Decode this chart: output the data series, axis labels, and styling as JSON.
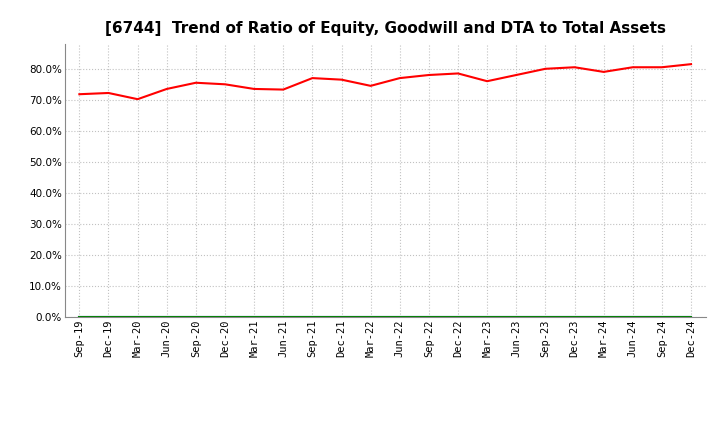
{
  "title": "[6744]  Trend of Ratio of Equity, Goodwill and DTA to Total Assets",
  "x_labels": [
    "Sep-19",
    "Dec-19",
    "Mar-20",
    "Jun-20",
    "Sep-20",
    "Dec-20",
    "Mar-21",
    "Jun-21",
    "Sep-21",
    "Dec-21",
    "Mar-22",
    "Jun-22",
    "Sep-22",
    "Dec-22",
    "Mar-23",
    "Jun-23",
    "Sep-23",
    "Dec-23",
    "Mar-24",
    "Jun-24",
    "Sep-24",
    "Dec-24"
  ],
  "equity": [
    71.8,
    72.2,
    70.2,
    73.5,
    75.5,
    75.0,
    73.5,
    73.3,
    77.0,
    76.5,
    74.5,
    77.0,
    78.0,
    78.5,
    76.0,
    78.0,
    80.0,
    80.5,
    79.0,
    80.5,
    80.5,
    81.5
  ],
  "goodwill": [
    0.0,
    0.0,
    0.0,
    0.0,
    0.0,
    0.0,
    0.0,
    0.0,
    0.0,
    0.0,
    0.0,
    0.0,
    0.0,
    0.0,
    0.0,
    0.0,
    0.0,
    0.0,
    0.0,
    0.0,
    0.0,
    0.0
  ],
  "dta": [
    0.0,
    0.0,
    0.0,
    0.0,
    0.0,
    0.0,
    0.0,
    0.0,
    0.0,
    0.0,
    0.0,
    0.0,
    0.0,
    0.0,
    0.0,
    0.0,
    0.0,
    0.0,
    0.0,
    0.0,
    0.0,
    0.0
  ],
  "equity_color": "#FF0000",
  "goodwill_color": "#0000FF",
  "dta_color": "#008000",
  "ylim": [
    0.0,
    88.0
  ],
  "yticks": [
    0.0,
    10.0,
    20.0,
    30.0,
    40.0,
    50.0,
    60.0,
    70.0,
    80.0
  ],
  "background_color": "#FFFFFF",
  "plot_bg_color": "#FFFFFF",
  "grid_color": "#BBBBBB",
  "title_fontsize": 11,
  "tick_fontsize": 7.5,
  "legend_fontsize": 9
}
